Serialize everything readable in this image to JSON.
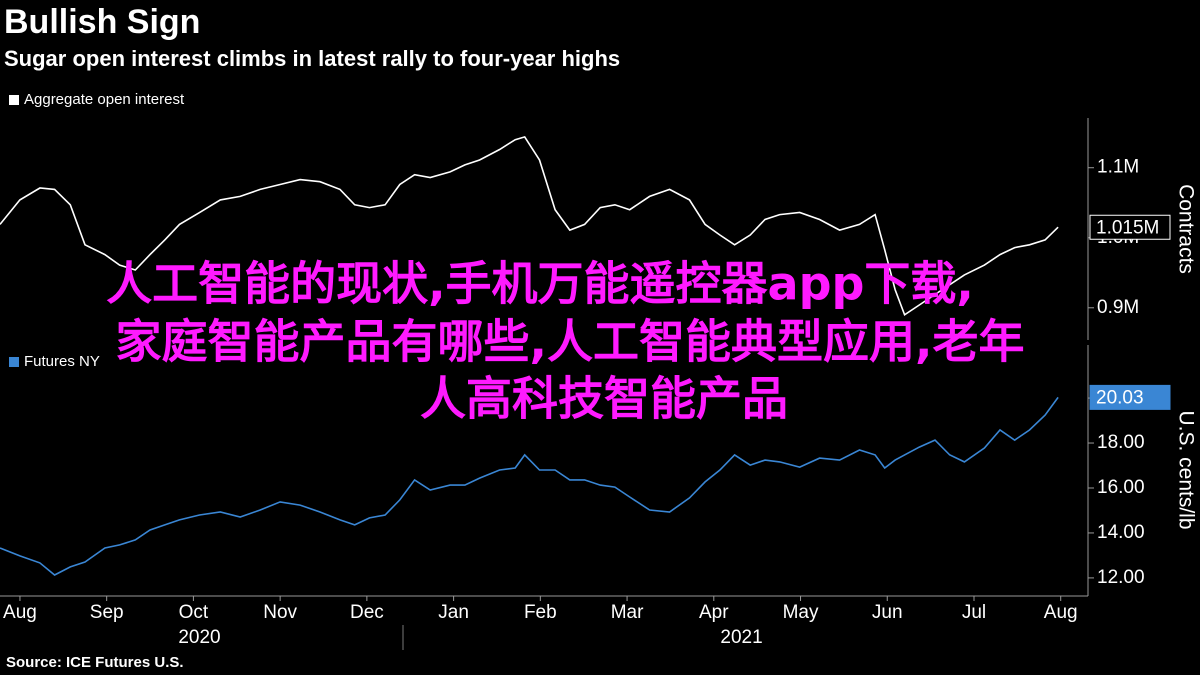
{
  "chart_data": [
    {
      "type": "line",
      "title": "Bullish Sign",
      "subtitle": "Sugar open interest climbs in latest rally to four-year highs",
      "source": "Source: ICE Futures U.S.",
      "annotation": [
        "人工智能的现状,手机万能遥控器app下载,",
        "家庭智能产品有哪些,人工智能典型应用,老年",
        "人高科技智能产品"
      ],
      "y_label": "Contracts",
      "x": [
        -0.23,
        0,
        0.23,
        0.4,
        0.58,
        0.75,
        0.98,
        1.15,
        1.33,
        1.5,
        1.67,
        1.84,
        2.07,
        2.31,
        2.54,
        2.77,
        3.0,
        3.23,
        3.46,
        3.69,
        3.86,
        4.03,
        4.21,
        4.38,
        4.55,
        4.73,
        4.96,
        5.13,
        5.3,
        5.53,
        5.71,
        5.82,
        5.99,
        6.17,
        6.34,
        6.51,
        6.69,
        6.86,
        7.03,
        7.26,
        7.49,
        7.72,
        7.9,
        8.07,
        8.24,
        8.42,
        8.59,
        8.76,
        8.99,
        9.22,
        9.45,
        9.68,
        9.86,
        9.97,
        10.09,
        10.2,
        10.37,
        10.55,
        10.72,
        10.89,
        11.12,
        11.3,
        11.47,
        11.64,
        11.82,
        11.97
      ],
      "series": [
        {
          "name": "Aggregate open interest",
          "color": "#ffffff",
          "values": [
            1019000,
            1054000,
            1071000,
            1069000,
            1047000,
            990000,
            976000,
            961000,
            954000,
            976000,
            997000,
            1019000,
            1036000,
            1054000,
            1059000,
            1069000,
            1076000,
            1083000,
            1080000,
            1069000,
            1047000,
            1043000,
            1047000,
            1076000,
            1090000,
            1086000,
            1094000,
            1104000,
            1111000,
            1126000,
            1140000,
            1144000,
            1111000,
            1040000,
            1011000,
            1019000,
            1043000,
            1047000,
            1040000,
            1059000,
            1069000,
            1054000,
            1019000,
            1004000,
            990000,
            1004000,
            1026000,
            1033000,
            1036000,
            1026000,
            1011000,
            1019000,
            1033000,
            983000,
            926000,
            890000,
            904000,
            919000,
            933000,
            947000,
            961000,
            976000,
            986000,
            990000,
            997000,
            1015000
          ],
          "value_labels": [
            null,
            null,
            null,
            null,
            null,
            null,
            null,
            null,
            null,
            null,
            null,
            null,
            null,
            null,
            null,
            null,
            null,
            null,
            null,
            null,
            null,
            null,
            null,
            null,
            null,
            null,
            null,
            null,
            null,
            null,
            null,
            null,
            null,
            null,
            null,
            null,
            null,
            null,
            null,
            null,
            null,
            null,
            null,
            null,
            null,
            null,
            null,
            null,
            null,
            null,
            null,
            null,
            null,
            null,
            null,
            null,
            null,
            null,
            null,
            null,
            null,
            null,
            null,
            null,
            null,
            "1.015M"
          ]
        }
      ],
      "xlim": [
        -0.23,
        12.28
      ],
      "ylim": [
        854000,
        1171000
      ],
      "yticks": [
        {
          "value": 900000,
          "label": "0.9M"
        },
        {
          "value": 1000000,
          "label": "1.0M"
        },
        {
          "value": 1100000,
          "label": "1.1M"
        }
      ],
      "grid": false
    },
    {
      "type": "line",
      "y_label": "U.S. cents/lb",
      "x": [
        -0.23,
        0,
        0.23,
        0.4,
        0.58,
        0.75,
        0.98,
        1.15,
        1.33,
        1.5,
        1.67,
        1.84,
        2.07,
        2.31,
        2.54,
        2.77,
        3.0,
        3.23,
        3.46,
        3.69,
        3.86,
        4.03,
        4.21,
        4.38,
        4.55,
        4.73,
        4.96,
        5.13,
        5.3,
        5.53,
        5.71,
        5.82,
        5.99,
        6.17,
        6.34,
        6.51,
        6.69,
        6.86,
        7.03,
        7.26,
        7.49,
        7.72,
        7.9,
        8.07,
        8.24,
        8.42,
        8.59,
        8.76,
        8.99,
        9.22,
        9.45,
        9.68,
        9.86,
        9.97,
        10.09,
        10.2,
        10.37,
        10.55,
        10.72,
        10.89,
        11.12,
        11.3,
        11.47,
        11.64,
        11.82,
        11.97
      ],
      "series": [
        {
          "name": "Futures NY",
          "color": "#3a86d4",
          "values": [
            13.33,
            12.98,
            12.67,
            12.13,
            12.49,
            12.71,
            13.33,
            13.47,
            13.69,
            14.13,
            14.36,
            14.58,
            14.8,
            14.93,
            14.71,
            15.02,
            15.38,
            15.24,
            14.93,
            14.58,
            14.36,
            14.67,
            14.8,
            15.47,
            16.36,
            15.91,
            16.13,
            16.13,
            16.44,
            16.8,
            16.89,
            17.47,
            16.8,
            16.8,
            16.36,
            16.36,
            16.13,
            16.04,
            15.6,
            15.02,
            14.93,
            15.56,
            16.27,
            16.8,
            17.47,
            17.02,
            17.24,
            17.16,
            16.93,
            17.33,
            17.24,
            17.69,
            17.47,
            16.89,
            17.24,
            17.47,
            17.82,
            18.13,
            17.47,
            17.16,
            17.78,
            18.58,
            18.13,
            18.58,
            19.24,
            20.03
          ]
        }
      ],
      "xlim": [
        -0.23,
        12.28
      ],
      "xticks": [
        {
          "value": 0,
          "label": "Aug"
        },
        {
          "value": 1,
          "label": "Sep"
        },
        {
          "value": 2,
          "label": "Oct"
        },
        {
          "value": 3,
          "label": "Nov"
        },
        {
          "value": 4,
          "label": "Dec"
        },
        {
          "value": 5,
          "label": "Jan"
        },
        {
          "value": 6,
          "label": "Feb"
        },
        {
          "value": 7,
          "label": "Mar"
        },
        {
          "value": 8,
          "label": "Apr"
        },
        {
          "value": 9,
          "label": "May"
        },
        {
          "value": 10,
          "label": "Jun"
        },
        {
          "value": 11,
          "label": "Jul"
        },
        {
          "value": 12,
          "label": "Aug"
        }
      ],
      "year_ticks": [
        {
          "value": 2.07,
          "label": "2020"
        },
        {
          "value": 8.32,
          "label": "2021"
        }
      ],
      "ylim": [
        11.24,
        22.36
      ],
      "yticks": [
        {
          "value": 12,
          "label": "12.00"
        },
        {
          "value": 14,
          "label": "14.00"
        },
        {
          "value": 16,
          "label": "16.00"
        },
        {
          "value": 18,
          "label": "18.00"
        },
        {
          "value": 20,
          "label": "20.00"
        }
      ],
      "grid": false
    }
  ]
}
